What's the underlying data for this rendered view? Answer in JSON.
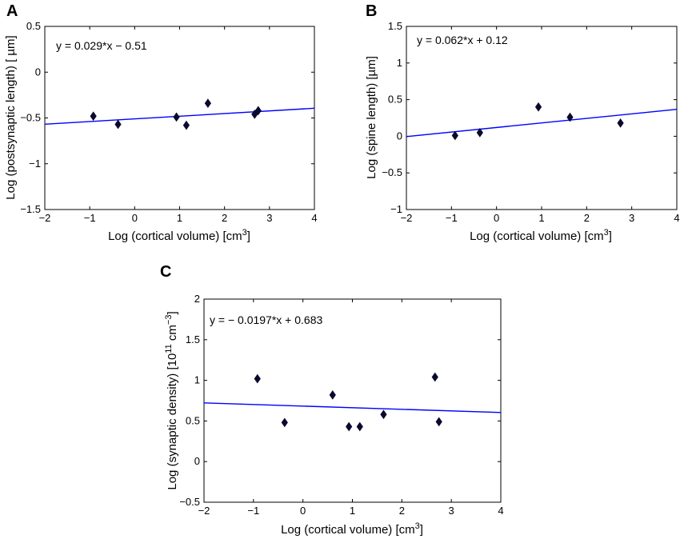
{
  "colors": {
    "fit_line": "#0000ff",
    "marker": "#0a0a2e",
    "axes": "#000000"
  },
  "chart_data": [
    {
      "type": "scatter",
      "panel": "A",
      "equation": "y = 0.029*x − 0.51",
      "xlabel": "Log (cortical volume)  [cm",
      "xlabel_sup": "3",
      "xlabel_end": "]",
      "ylabel": "Log (postsynaptic length)  [ µm]",
      "xlim": [
        -2,
        4
      ],
      "ylim": [
        -1.5,
        0.5
      ],
      "xticks": [
        -2,
        -1,
        0,
        1,
        2,
        3,
        4
      ],
      "yticks": [
        -1.5,
        -1,
        -0.5,
        0,
        0.5
      ],
      "x": [
        -0.92,
        -0.37,
        0.93,
        1.15,
        1.63,
        2.67,
        2.75
      ],
      "y": [
        -0.48,
        -0.57,
        -0.49,
        -0.58,
        -0.34,
        -0.46,
        -0.42
      ],
      "fit": {
        "slope": 0.029,
        "intercept": -0.51
      }
    },
    {
      "type": "scatter",
      "panel": "B",
      "equation": "y = 0.062*x + 0.12",
      "xlabel": "Log (cortical volume)  [cm",
      "xlabel_sup": "3",
      "xlabel_end": "]",
      "ylabel": "Log (spine length)  [µm]",
      "xlim": [
        -2,
        4
      ],
      "ylim": [
        -1,
        1.5
      ],
      "xticks": [
        -2,
        -1,
        0,
        1,
        2,
        3,
        4
      ],
      "yticks": [
        -1,
        -0.5,
        0,
        0.5,
        1,
        1.5
      ],
      "x": [
        -0.92,
        -0.37,
        0.93,
        1.63,
        2.75
      ],
      "y": [
        0.01,
        0.05,
        0.4,
        0.26,
        0.18
      ],
      "fit": {
        "slope": 0.062,
        "intercept": 0.12
      }
    },
    {
      "type": "scatter",
      "panel": "C",
      "equation": "y = − 0.0197*x + 0.683",
      "xlabel": "Log (cortical volume)  [cm",
      "xlabel_sup": "3",
      "xlabel_end": "]",
      "ylabel": "Log (synaptic density)  [10",
      "ylabel_sup": "11",
      "ylabel_end": " cm",
      "ylabel_sup2": "−3",
      "ylabel_close": "]",
      "xlim": [
        -2,
        4
      ],
      "ylim": [
        -0.5,
        2
      ],
      "xticks": [
        -2,
        -1,
        0,
        1,
        2,
        3,
        4
      ],
      "yticks": [
        -0.5,
        0,
        0.5,
        1,
        1.5,
        2
      ],
      "x": [
        -0.92,
        -0.37,
        0.6,
        0.93,
        1.15,
        1.63,
        2.67,
        2.75
      ],
      "y": [
        1.02,
        0.48,
        0.82,
        0.43,
        0.43,
        0.58,
        1.04,
        0.49
      ],
      "fit": {
        "slope": -0.0197,
        "intercept": 0.683
      }
    }
  ]
}
